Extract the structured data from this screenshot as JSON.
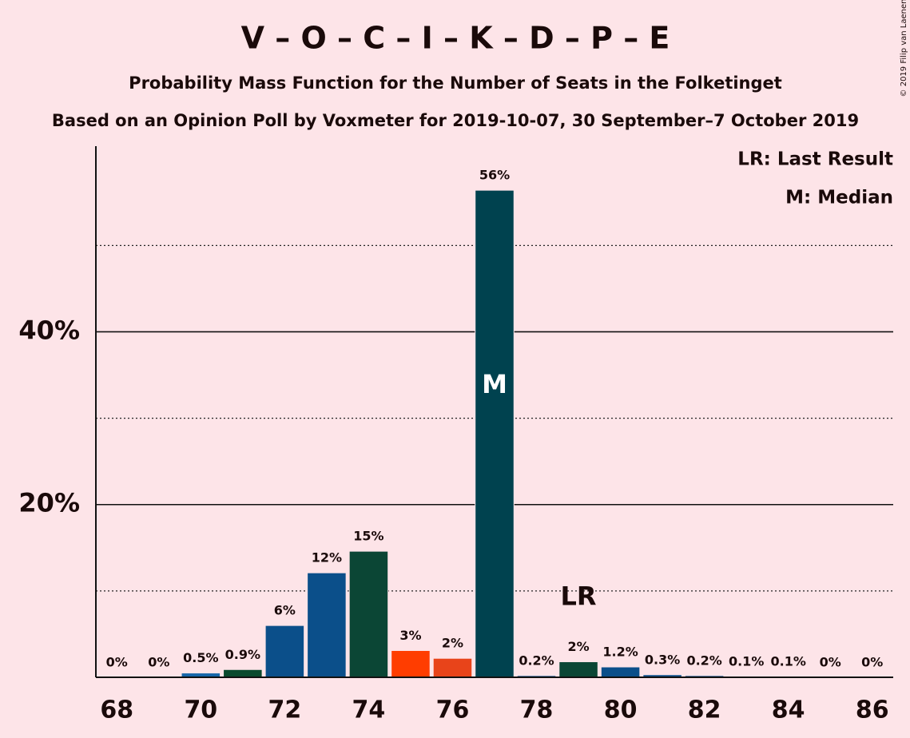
{
  "chart_data": {
    "type": "bar",
    "title": "V – O – C – I – K – D – P – E",
    "subtitle": "Probability Mass Function for the Number of Seats in the Folketinget",
    "caption": "Based on an Opinion Poll by Voxmeter for 2019-10-07, 30 September–7 October 2019",
    "copyright": "© 2019 Filip van Laenen",
    "legend": [
      "LR: Last Result",
      "M: Median"
    ],
    "x": [
      68,
      69,
      70,
      71,
      72,
      73,
      74,
      75,
      76,
      77,
      78,
      79,
      80,
      81,
      82,
      83,
      84,
      85,
      86
    ],
    "values": [
      0,
      0,
      0.5,
      0.9,
      6,
      12.1,
      14.6,
      3.1,
      2.2,
      56.4,
      0.2,
      1.8,
      1.2,
      0.3,
      0.2,
      0.1,
      0.1,
      0,
      0
    ],
    "value_labels": [
      "0%",
      "0%",
      "0.5%",
      "0.9%",
      "6%",
      "12%",
      "15%",
      "3%",
      "2%",
      "56%",
      "0.2%",
      "2%",
      "1.2%",
      "0.3%",
      "0.2%",
      "0.1%",
      "0.1%",
      "0%",
      "0%"
    ],
    "colors": [
      "#0b4f8a",
      "#0b4f8a",
      "#1565a8",
      "#0a4a2e",
      "#0b4f8a",
      "#0b4f8a",
      "#0b4635",
      "#ff3d00",
      "#e8441a",
      "#00424f",
      "#0b4f8a",
      "#0b4635",
      "#0b4f8a",
      "#0b4f8a",
      "#0b4f8a",
      "#0b4f8a",
      "#0b4f8a",
      "#0b4f8a",
      "#0b4f8a"
    ],
    "xlim": [
      67.5,
      86.5
    ],
    "xticks": [
      68,
      70,
      72,
      74,
      76,
      78,
      80,
      82,
      84,
      86
    ],
    "ylim": [
      0,
      61.5
    ],
    "yticks": [
      {
        "value": 20,
        "label": "20%"
      },
      {
        "value": 40,
        "label": "40%"
      }
    ],
    "yminorticks": [
      10,
      30,
      50
    ],
    "annotations": [
      {
        "text": "LR",
        "x": 79
      },
      {
        "text": "M",
        "x": 77
      }
    ]
  }
}
